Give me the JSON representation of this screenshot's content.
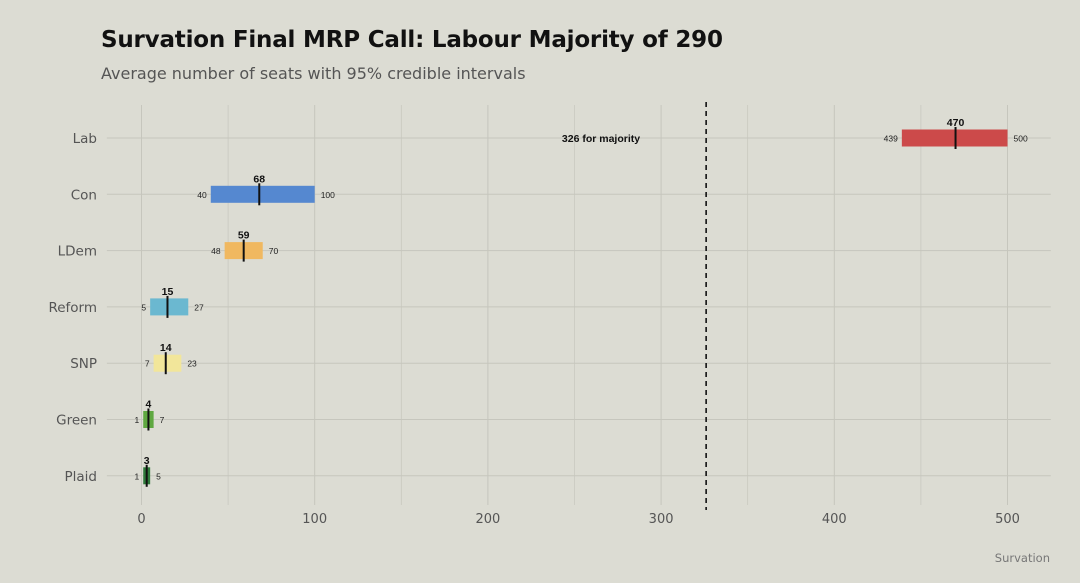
{
  "title": "Survation Final MRP Call: Labour Majority of 290",
  "subtitle": "Average number of seats with 95% credible intervals",
  "source": "Survation",
  "chart_data": {
    "type": "bar",
    "orientation": "horizontal",
    "series_kind": "interval",
    "categories": [
      "Lab",
      "Con",
      "LDem",
      "Reform",
      "SNP",
      "Green",
      "Plaid"
    ],
    "values": [
      470,
      68,
      59,
      15,
      14,
      4,
      3
    ],
    "lower": [
      439,
      40,
      48,
      5,
      7,
      1,
      1
    ],
    "upper": [
      500,
      100,
      70,
      27,
      23,
      7,
      5
    ],
    "colors": [
      "#cc4a4a",
      "#5588d0",
      "#f0b860",
      "#6bb8d0",
      "#f2e69a",
      "#5fa840",
      "#2e7a3a"
    ],
    "xlim": [
      -20,
      525
    ],
    "xticks": [
      0,
      100,
      200,
      300,
      400,
      500
    ],
    "grid": true,
    "reference_line": {
      "value": 326,
      "label": "326 for majority",
      "style": "dashed"
    }
  }
}
